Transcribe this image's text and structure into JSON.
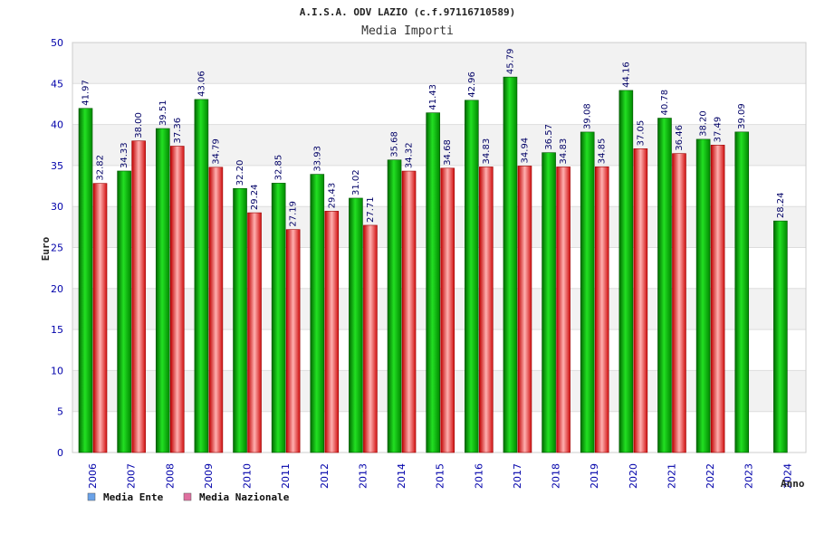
{
  "chart_data": {
    "type": "bar",
    "title": "A.I.S.A. ODV LAZIO (c.f.97116710589)",
    "subtitle": "Media Importi",
    "ylabel": "Euro",
    "xlabel": "Anno",
    "ylim": [
      0,
      50
    ],
    "yticks": [
      "0",
      "5",
      "10",
      "15",
      "20",
      "25",
      "30",
      "35",
      "40",
      "45",
      "50"
    ],
    "grid": true,
    "legend_position": "bottom-left",
    "categories": [
      "2006",
      "2007",
      "2008",
      "2009",
      "2010",
      "2011",
      "2012",
      "2013",
      "2014",
      "2015",
      "2016",
      "2017",
      "2018",
      "2019",
      "2020",
      "2021",
      "2022",
      "2023",
      "2024"
    ],
    "series": [
      {
        "name": "Media Ente",
        "color": "#00a000",
        "legend_color": "#6aa2e8",
        "values": [
          41.97,
          34.33,
          39.51,
          43.06,
          32.2,
          32.85,
          33.93,
          31.02,
          35.68,
          41.43,
          42.96,
          45.79,
          36.57,
          39.08,
          44.16,
          40.78,
          38.2,
          39.09,
          28.24
        ],
        "labels": [
          "41.97",
          "34.33",
          "39.51",
          "43.06",
          "32.20",
          "32.85",
          "33.93",
          "31.02",
          "35.68",
          "41.43",
          "42.96",
          "45.79",
          "36.57",
          "39.08",
          "44.16",
          "40.78",
          "38.20",
          "39.09",
          "28.24"
        ]
      },
      {
        "name": "Media Nazionale",
        "color": "#e01010",
        "legend_color": "#e070a0",
        "values": [
          32.82,
          38.0,
          37.36,
          34.79,
          29.24,
          27.19,
          29.43,
          27.71,
          34.32,
          34.68,
          34.83,
          34.94,
          34.83,
          34.85,
          37.05,
          36.46,
          37.49,
          null,
          null
        ],
        "labels": [
          "32.82",
          "38.00",
          "37.36",
          "34.79",
          "29.24",
          "27.19",
          "29.43",
          "27.71",
          "34.32",
          "34.68",
          "34.83",
          "34.94",
          "34.83",
          "34.85",
          "37.05",
          "36.46",
          "37.49",
          "",
          ""
        ]
      }
    ]
  }
}
